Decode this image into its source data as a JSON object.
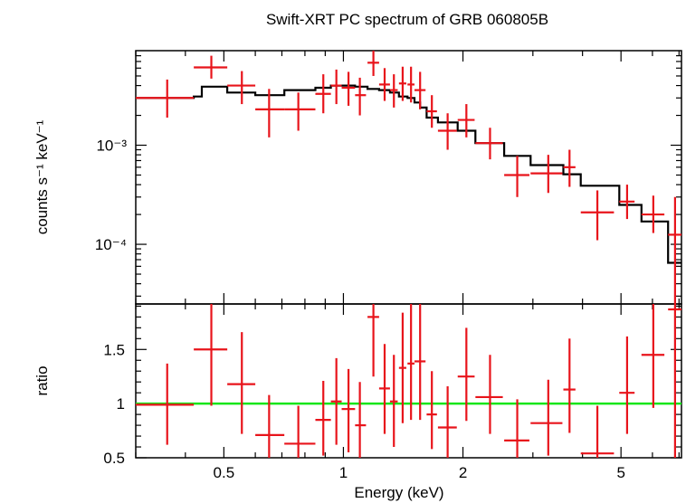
{
  "chart_data": [
    {
      "type": "scatter",
      "panel": "spectrum",
      "title": "Swift-XRT PC spectrum of GRB 060805B",
      "xlabel": "Energy (keV)",
      "ylabel": "counts s⁻¹ keV⁻¹",
      "xscale": "log",
      "yscale": "log",
      "xlim": [
        0.3,
        7.1
      ],
      "ylim": [
        2.5e-05,
        0.009
      ],
      "ytick_labels": [
        "10⁻³",
        "10⁻⁴"
      ],
      "ytick_values": [
        0.001,
        0.0001
      ],
      "points": [
        {
          "x": 0.36,
          "xlo": 0.3,
          "xhi": 0.42,
          "y": 0.003,
          "ylo": 0.0019,
          "yhi": 0.0046
        },
        {
          "x": 0.465,
          "xlo": 0.42,
          "xhi": 0.51,
          "y": 0.0061,
          "ylo": 0.0047,
          "yhi": 0.008
        },
        {
          "x": 0.555,
          "xlo": 0.51,
          "xhi": 0.6,
          "y": 0.004,
          "ylo": 0.0026,
          "yhi": 0.0056
        },
        {
          "x": 0.65,
          "xlo": 0.6,
          "xhi": 0.71,
          "y": 0.0023,
          "ylo": 0.0012,
          "yhi": 0.0037
        },
        {
          "x": 0.77,
          "xlo": 0.71,
          "xhi": 0.85,
          "y": 0.0023,
          "ylo": 0.0014,
          "yhi": 0.0034
        },
        {
          "x": 0.89,
          "xlo": 0.85,
          "xhi": 0.93,
          "y": 0.0033,
          "ylo": 0.0021,
          "yhi": 0.0052
        },
        {
          "x": 0.96,
          "xlo": 0.93,
          "xhi": 0.99,
          "y": 0.004,
          "ylo": 0.0026,
          "yhi": 0.0058
        },
        {
          "x": 1.03,
          "xlo": 0.99,
          "xhi": 1.07,
          "y": 0.0038,
          "ylo": 0.0025,
          "yhi": 0.0055
        },
        {
          "x": 1.1,
          "xlo": 1.07,
          "xhi": 1.14,
          "y": 0.0032,
          "ylo": 0.002,
          "yhi": 0.0048
        },
        {
          "x": 1.19,
          "xlo": 1.15,
          "xhi": 1.23,
          "y": 0.0068,
          "ylo": 0.005,
          "yhi": 0.009
        },
        {
          "x": 1.27,
          "xlo": 1.23,
          "xhi": 1.31,
          "y": 0.0041,
          "ylo": 0.0028,
          "yhi": 0.006
        },
        {
          "x": 1.34,
          "xlo": 1.31,
          "xhi": 1.37,
          "y": 0.0036,
          "ylo": 0.0024,
          "yhi": 0.0052
        },
        {
          "x": 1.41,
          "xlo": 1.38,
          "xhi": 1.44,
          "y": 0.0042,
          "ylo": 0.0028,
          "yhi": 0.0062
        },
        {
          "x": 1.48,
          "xlo": 1.45,
          "xhi": 1.51,
          "y": 0.0041,
          "ylo": 0.0027,
          "yhi": 0.0062
        },
        {
          "x": 1.56,
          "xlo": 1.51,
          "xhi": 1.61,
          "y": 0.0036,
          "ylo": 0.0023,
          "yhi": 0.0055
        },
        {
          "x": 1.67,
          "xlo": 1.62,
          "xhi": 1.72,
          "y": 0.0022,
          "ylo": 0.0015,
          "yhi": 0.0032
        },
        {
          "x": 1.83,
          "xlo": 1.73,
          "xhi": 1.93,
          "y": 0.0014,
          "ylo": 0.0009,
          "yhi": 0.0021
        },
        {
          "x": 2.04,
          "xlo": 1.94,
          "xhi": 2.14,
          "y": 0.0018,
          "ylo": 0.0012,
          "yhi": 0.0026
        },
        {
          "x": 2.34,
          "xlo": 2.15,
          "xhi": 2.52,
          "y": 0.00105,
          "ylo": 0.00072,
          "yhi": 0.0015
        },
        {
          "x": 2.74,
          "xlo": 2.54,
          "xhi": 2.94,
          "y": 0.0005,
          "ylo": 0.0003,
          "yhi": 0.00078
        },
        {
          "x": 3.28,
          "xlo": 2.96,
          "xhi": 3.56,
          "y": 0.00052,
          "ylo": 0.00033,
          "yhi": 0.0008
        },
        {
          "x": 3.71,
          "xlo": 3.58,
          "xhi": 3.84,
          "y": 0.0006,
          "ylo": 0.00038,
          "yhi": 0.0009
        },
        {
          "x": 4.36,
          "xlo": 3.96,
          "xhi": 4.8,
          "y": 0.00021,
          "ylo": 0.00011,
          "yhi": 0.00035
        },
        {
          "x": 5.18,
          "xlo": 4.95,
          "xhi": 5.41,
          "y": 0.00027,
          "ylo": 0.00018,
          "yhi": 0.0004
        },
        {
          "x": 6.03,
          "xlo": 5.63,
          "xhi": 6.43,
          "y": 0.0002,
          "ylo": 0.00013,
          "yhi": 0.00031
        },
        {
          "x": 6.84,
          "xlo": 6.57,
          "xhi": 7.1,
          "y": 0.000125,
          "ylo": 2.5e-05,
          "yhi": 0.0003
        }
      ],
      "model_steps": [
        {
          "xlo": 0.3,
          "xhi": 0.42,
          "y": 0.003
        },
        {
          "xlo": 0.42,
          "xhi": 0.44,
          "y": 0.0031
        },
        {
          "xlo": 0.44,
          "xhi": 0.51,
          "y": 0.0039
        },
        {
          "xlo": 0.51,
          "xhi": 0.6,
          "y": 0.0034
        },
        {
          "xlo": 0.6,
          "xhi": 0.71,
          "y": 0.0032
        },
        {
          "xlo": 0.71,
          "xhi": 0.85,
          "y": 0.0036
        },
        {
          "xlo": 0.85,
          "xhi": 0.93,
          "y": 0.0038
        },
        {
          "xlo": 0.93,
          "xhi": 1.07,
          "y": 0.004
        },
        {
          "xlo": 1.07,
          "xhi": 1.15,
          "y": 0.0039
        },
        {
          "xlo": 1.15,
          "xhi": 1.23,
          "y": 0.0037
        },
        {
          "xlo": 1.23,
          "xhi": 1.31,
          "y": 0.0036
        },
        {
          "xlo": 1.31,
          "xhi": 1.38,
          "y": 0.0034
        },
        {
          "xlo": 1.38,
          "xhi": 1.45,
          "y": 0.0031
        },
        {
          "xlo": 1.45,
          "xhi": 1.51,
          "y": 0.003
        },
        {
          "xlo": 1.51,
          "xhi": 1.56,
          "y": 0.0027
        },
        {
          "xlo": 1.56,
          "xhi": 1.62,
          "y": 0.0024
        },
        {
          "xlo": 1.62,
          "xhi": 1.73,
          "y": 0.0019
        },
        {
          "xlo": 1.73,
          "xhi": 1.94,
          "y": 0.0017
        },
        {
          "xlo": 1.94,
          "xhi": 2.15,
          "y": 0.0014
        },
        {
          "xlo": 2.15,
          "xhi": 2.54,
          "y": 0.00105
        },
        {
          "xlo": 2.54,
          "xhi": 2.96,
          "y": 0.00078
        },
        {
          "xlo": 2.96,
          "xhi": 3.58,
          "y": 0.00063
        },
        {
          "xlo": 3.58,
          "xhi": 3.96,
          "y": 0.00051
        },
        {
          "xlo": 3.96,
          "xhi": 4.95,
          "y": 0.00039
        },
        {
          "xlo": 4.95,
          "xhi": 5.63,
          "y": 0.00025
        },
        {
          "xlo": 5.63,
          "xhi": 6.57,
          "y": 0.00017
        },
        {
          "xlo": 6.57,
          "xhi": 7.1,
          "y": 6.5e-05
        }
      ]
    },
    {
      "type": "scatter",
      "panel": "ratio",
      "xlabel": "Energy (keV)",
      "ylabel": "ratio",
      "xscale": "log",
      "yscale": "linear",
      "xlim": [
        0.3,
        7.1
      ],
      "ylim": [
        0.5,
        1.92
      ],
      "yticks": [
        0.5,
        1,
        1.5
      ],
      "ytick_labels": [
        "0.5",
        "1",
        "1.5"
      ],
      "xticks": [
        0.5,
        1,
        2,
        5
      ],
      "xtick_labels": [
        "0.5",
        "1",
        "2",
        "5"
      ],
      "reference_line": 1,
      "points": [
        {
          "x": 0.36,
          "xlo": 0.3,
          "xhi": 0.42,
          "y": 0.99,
          "ylo": 0.62,
          "yhi": 1.37
        },
        {
          "x": 0.465,
          "xlo": 0.42,
          "xhi": 0.51,
          "y": 1.5,
          "ylo": 0.98,
          "yhi": 1.92
        },
        {
          "x": 0.555,
          "xlo": 0.51,
          "xhi": 0.6,
          "y": 1.18,
          "ylo": 0.72,
          "yhi": 1.66
        },
        {
          "x": 0.65,
          "xlo": 0.6,
          "xhi": 0.71,
          "y": 0.71,
          "ylo": 0.48,
          "yhi": 1.08
        },
        {
          "x": 0.77,
          "xlo": 0.71,
          "xhi": 0.85,
          "y": 0.63,
          "ylo": 0.48,
          "yhi": 0.98
        },
        {
          "x": 0.89,
          "xlo": 0.85,
          "xhi": 0.93,
          "y": 0.85,
          "ylo": 0.52,
          "yhi": 1.21
        },
        {
          "x": 0.96,
          "xlo": 0.93,
          "xhi": 0.99,
          "y": 1.02,
          "ylo": 0.62,
          "yhi": 1.42
        },
        {
          "x": 1.03,
          "xlo": 0.99,
          "xhi": 1.07,
          "y": 0.95,
          "ylo": 0.55,
          "yhi": 1.32
        },
        {
          "x": 1.1,
          "xlo": 1.07,
          "xhi": 1.14,
          "y": 0.8,
          "ylo": 0.48,
          "yhi": 1.2
        },
        {
          "x": 1.19,
          "xlo": 1.15,
          "xhi": 1.23,
          "y": 1.8,
          "ylo": 1.25,
          "yhi": 1.92
        },
        {
          "x": 1.27,
          "xlo": 1.23,
          "xhi": 1.31,
          "y": 1.14,
          "ylo": 0.72,
          "yhi": 1.55
        },
        {
          "x": 1.34,
          "xlo": 1.31,
          "xhi": 1.37,
          "y": 1.02,
          "ylo": 0.6,
          "yhi": 1.45
        },
        {
          "x": 1.41,
          "xlo": 1.38,
          "xhi": 1.44,
          "y": 1.33,
          "ylo": 0.82,
          "yhi": 1.84
        },
        {
          "x": 1.48,
          "xlo": 1.45,
          "xhi": 1.51,
          "y": 1.37,
          "ylo": 0.85,
          "yhi": 1.92
        },
        {
          "x": 1.56,
          "xlo": 1.51,
          "xhi": 1.61,
          "y": 1.39,
          "ylo": 0.85,
          "yhi": 1.92
        },
        {
          "x": 1.67,
          "xlo": 1.62,
          "xhi": 1.72,
          "y": 0.9,
          "ylo": 0.58,
          "yhi": 1.3
        },
        {
          "x": 1.83,
          "xlo": 1.73,
          "xhi": 1.93,
          "y": 0.78,
          "ylo": 0.48,
          "yhi": 1.16
        },
        {
          "x": 2.04,
          "xlo": 1.94,
          "xhi": 2.14,
          "y": 1.25,
          "ylo": 0.84,
          "yhi": 1.7
        },
        {
          "x": 2.34,
          "xlo": 2.15,
          "xhi": 2.52,
          "y": 1.06,
          "ylo": 0.72,
          "yhi": 1.45
        },
        {
          "x": 2.74,
          "xlo": 2.54,
          "xhi": 2.94,
          "y": 0.66,
          "ylo": 0.48,
          "yhi": 1.04
        },
        {
          "x": 3.28,
          "xlo": 2.96,
          "xhi": 3.56,
          "y": 0.82,
          "ylo": 0.52,
          "yhi": 1.22
        },
        {
          "x": 3.71,
          "xlo": 3.58,
          "xhi": 3.84,
          "y": 1.13,
          "ylo": 0.73,
          "yhi": 1.6
        },
        {
          "x": 4.36,
          "xlo": 3.96,
          "xhi": 4.8,
          "y": 0.54,
          "ylo": 0.48,
          "yhi": 0.98
        },
        {
          "x": 5.18,
          "xlo": 4.95,
          "xhi": 5.41,
          "y": 1.1,
          "ylo": 0.72,
          "yhi": 1.62
        },
        {
          "x": 6.03,
          "xlo": 5.63,
          "xhi": 6.43,
          "y": 1.45,
          "ylo": 0.96,
          "yhi": 1.92
        },
        {
          "x": 6.84,
          "xlo": 6.57,
          "xhi": 7.1,
          "y": 1.87,
          "ylo": 0.48,
          "yhi": 1.92
        }
      ]
    }
  ],
  "colors": {
    "data": "#e8141b",
    "model": "#000000",
    "unity_line": "#17e61a"
  }
}
